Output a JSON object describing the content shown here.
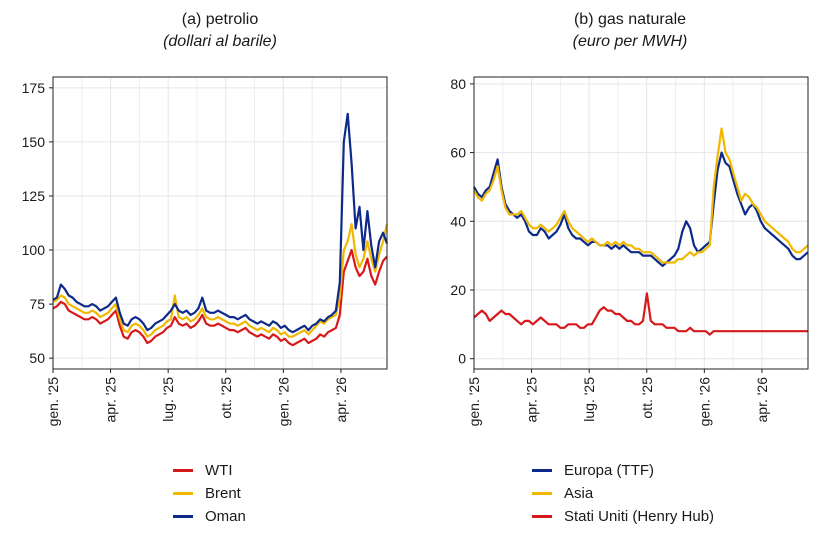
{
  "chart_data": [
    {
      "type": "line",
      "title": "(a) petrolio",
      "subtitle": "(dollari al barile)",
      "xlabel": "",
      "ylabel": "",
      "x_ticks": [
        "gen. '25",
        "apr. '25",
        "lug. '25",
        "ott. '25",
        "gen. '26",
        "apr. '26"
      ],
      "y_ticks": [
        50,
        75,
        100,
        125,
        150,
        175
      ],
      "xlim": [
        0,
        17
      ],
      "ylim": [
        45,
        180
      ],
      "grid": true,
      "legend_position": "bottom",
      "x": [
        0,
        0.2,
        0.4,
        0.6,
        0.8,
        1,
        1.2,
        1.4,
        1.6,
        1.8,
        2,
        2.2,
        2.4,
        2.6,
        2.8,
        3,
        3.2,
        3.4,
        3.6,
        3.8,
        4,
        4.2,
        4.4,
        4.6,
        4.8,
        5,
        5.2,
        5.4,
        5.6,
        5.8,
        6,
        6.2,
        6.4,
        6.6,
        6.8,
        7,
        7.2,
        7.4,
        7.6,
        7.8,
        8,
        8.2,
        8.4,
        8.6,
        8.8,
        9,
        9.2,
        9.4,
        9.6,
        9.8,
        10,
        10.2,
        10.4,
        10.6,
        10.8,
        11,
        11.2,
        11.4,
        11.6,
        11.8,
        12,
        12.2,
        12.4,
        12.6,
        12.8,
        13,
        13.2,
        13.4,
        13.6,
        13.8,
        14,
        14.2,
        14.4,
        14.6,
        14.8,
        15,
        15.2,
        15.4,
        15.6,
        15.8,
        16,
        16.2,
        16.4,
        16.6,
        16.8,
        17
      ],
      "series": [
        {
          "name": "WTI",
          "color": "#d7191c",
          "values": [
            73,
            74,
            76,
            75,
            72,
            71,
            70,
            69,
            68,
            68,
            69,
            68,
            66,
            67,
            68,
            70,
            72,
            65,
            60,
            59,
            62,
            63,
            62,
            60,
            57,
            58,
            60,
            61,
            62,
            64,
            65,
            69,
            66,
            65,
            66,
            64,
            65,
            67,
            70,
            66,
            65,
            65,
            66,
            65,
            64,
            63,
            63,
            62,
            63,
            64,
            62,
            61,
            60,
            61,
            60,
            59,
            61,
            60,
            58,
            59,
            57,
            56,
            57,
            58,
            59,
            57,
            58,
            59,
            61,
            60,
            62,
            63,
            64,
            70,
            90,
            95,
            100,
            92,
            88,
            90,
            96,
            88,
            84,
            90,
            95,
            97
          ]
        },
        {
          "name": "Brent",
          "color": "#f0b800",
          "values": [
            76,
            77,
            79,
            78,
            75,
            74,
            73,
            72,
            71,
            71,
            72,
            71,
            69,
            70,
            71,
            73,
            75,
            68,
            63,
            62,
            65,
            66,
            65,
            63,
            60,
            61,
            63,
            64,
            65,
            67,
            68,
            79,
            69,
            68,
            69,
            67,
            68,
            70,
            73,
            69,
            68,
            68,
            69,
            68,
            67,
            66,
            66,
            65,
            66,
            67,
            65,
            64,
            63,
            64,
            63,
            62,
            64,
            63,
            61,
            62,
            60,
            60,
            61,
            62,
            63,
            61,
            63,
            65,
            67,
            66,
            68,
            69,
            70,
            78,
            100,
            104,
            112,
            98,
            92,
            96,
            104,
            96,
            90,
            98,
            104,
            112
          ]
        },
        {
          "name": "Oman",
          "color": "#0d2a8a",
          "values": [
            77,
            78,
            84,
            82,
            79,
            78,
            76,
            75,
            74,
            74,
            75,
            74,
            72,
            73,
            74,
            76,
            78,
            71,
            66,
            65,
            68,
            69,
            68,
            66,
            63,
            64,
            66,
            67,
            68,
            70,
            72,
            75,
            72,
            71,
            72,
            70,
            71,
            73,
            78,
            72,
            71,
            71,
            72,
            71,
            70,
            69,
            69,
            68,
            69,
            70,
            68,
            67,
            66,
            67,
            66,
            65,
            67,
            66,
            64,
            65,
            63,
            62,
            63,
            64,
            65,
            63,
            65,
            66,
            68,
            67,
            69,
            70,
            72,
            85,
            150,
            163,
            140,
            110,
            120,
            100,
            118,
            102,
            92,
            104,
            108,
            103
          ]
        }
      ]
    },
    {
      "type": "line",
      "title": "(b) gas naturale",
      "subtitle": "(euro per MWH)",
      "xlabel": "",
      "ylabel": "",
      "x_ticks": [
        "gen. '25",
        "apr. '25",
        "lug. '25",
        "ott. '25",
        "gen. '26",
        "apr. '26"
      ],
      "y_ticks": [
        0,
        20,
        40,
        60,
        80
      ],
      "xlim": [
        0,
        17
      ],
      "ylim": [
        -3,
        82
      ],
      "grid": true,
      "legend_position": "bottom",
      "x": [
        0,
        0.2,
        0.4,
        0.6,
        0.8,
        1,
        1.2,
        1.4,
        1.6,
        1.8,
        2,
        2.2,
        2.4,
        2.6,
        2.8,
        3,
        3.2,
        3.4,
        3.6,
        3.8,
        4,
        4.2,
        4.4,
        4.6,
        4.8,
        5,
        5.2,
        5.4,
        5.6,
        5.8,
        6,
        6.2,
        6.4,
        6.6,
        6.8,
        7,
        7.2,
        7.4,
        7.6,
        7.8,
        8,
        8.2,
        8.4,
        8.6,
        8.8,
        9,
        9.2,
        9.4,
        9.6,
        9.8,
        10,
        10.2,
        10.4,
        10.6,
        10.8,
        11,
        11.2,
        11.4,
        11.6,
        11.8,
        12,
        12.2,
        12.4,
        12.6,
        12.8,
        13,
        13.2,
        13.4,
        13.6,
        13.8,
        14,
        14.2,
        14.4,
        14.6,
        14.8,
        15,
        15.2,
        15.4,
        15.6,
        15.8,
        16,
        16.2,
        16.4,
        16.6,
        16.8,
        17
      ],
      "series": [
        {
          "name": "Europa (TTF)",
          "color": "#0d2a8a",
          "values": [
            50,
            48,
            47,
            49,
            50,
            54,
            58,
            50,
            45,
            43,
            42,
            41,
            42,
            40,
            37,
            36,
            36,
            38,
            37,
            35,
            36,
            37,
            39,
            42,
            38,
            36,
            35,
            35,
            34,
            33,
            34,
            34,
            33,
            33,
            33,
            32,
            33,
            32,
            33,
            32,
            31,
            31,
            31,
            30,
            30,
            30,
            29,
            28,
            27,
            28,
            29,
            30,
            32,
            37,
            40,
            38,
            33,
            31,
            32,
            33,
            34,
            45,
            55,
            60,
            57,
            56,
            52,
            48,
            45,
            42,
            44,
            45,
            43,
            40,
            38,
            37,
            36,
            35,
            34,
            33,
            32,
            30,
            29,
            29,
            30,
            31
          ]
        },
        {
          "name": "Asia",
          "color": "#f0b800",
          "values": [
            49,
            47,
            46,
            48,
            49,
            52,
            56,
            49,
            44,
            42,
            42,
            42,
            43,
            41,
            39,
            38,
            38,
            39,
            38,
            37,
            38,
            39,
            41,
            43,
            40,
            38,
            37,
            36,
            35,
            34,
            35,
            34,
            33,
            33,
            34,
            33,
            34,
            33,
            34,
            33,
            33,
            32,
            32,
            31,
            31,
            31,
            30,
            29,
            28,
            28,
            28,
            28,
            29,
            29,
            30,
            31,
            30,
            31,
            31,
            32,
            33,
            50,
            59,
            67,
            60,
            58,
            54,
            50,
            46,
            48,
            47,
            45,
            44,
            42,
            40,
            39,
            38,
            37,
            36,
            35,
            34,
            32,
            31,
            31,
            32,
            33
          ]
        },
        {
          "name": "Stati Uniti (Henry Hub)",
          "color": "#d7191c",
          "values": [
            12,
            13,
            14,
            13,
            11,
            12,
            13,
            14,
            13,
            13,
            12,
            11,
            10,
            11,
            11,
            10,
            11,
            12,
            11,
            10,
            10,
            10,
            9,
            9,
            10,
            10,
            10,
            9,
            9,
            10,
            10,
            12,
            14,
            15,
            14,
            14,
            13,
            13,
            12,
            11,
            11,
            10,
            10,
            11,
            19,
            11,
            10,
            10,
            10,
            9,
            9,
            9,
            8,
            8,
            8,
            9,
            8,
            8,
            8,
            8,
            7,
            8,
            8,
            8,
            8,
            8,
            8,
            8,
            8,
            8,
            8,
            8,
            8,
            8,
            8,
            8,
            8,
            8,
            8,
            8,
            8,
            8,
            8,
            8,
            8,
            8
          ]
        }
      ]
    }
  ]
}
